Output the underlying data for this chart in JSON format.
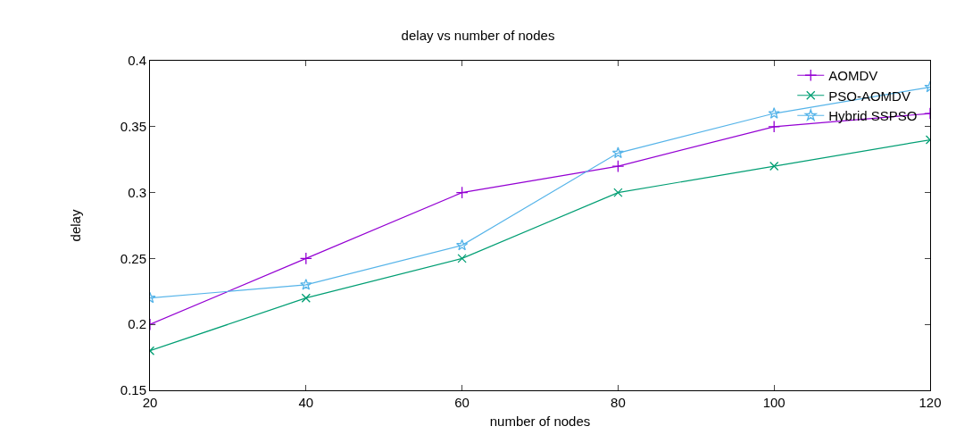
{
  "chart_data": {
    "type": "line",
    "title": "delay vs number of nodes",
    "xlabel": "number of nodes",
    "ylabel": "delay",
    "x": [
      20,
      40,
      60,
      80,
      100,
      120
    ],
    "series": [
      {
        "name": "AOMDV",
        "color": "#9400d3",
        "marker": "plus",
        "values": [
          0.2,
          0.25,
          0.3,
          0.32,
          0.35,
          0.36
        ]
      },
      {
        "name": "PSO-AOMDV",
        "color": "#009e73",
        "marker": "cross",
        "values": [
          0.18,
          0.22,
          0.25,
          0.3,
          0.32,
          0.34
        ]
      },
      {
        "name": "Hybrid SSPSO",
        "color": "#56b4e9",
        "marker": "star",
        "values": [
          0.22,
          0.23,
          0.26,
          0.33,
          0.36,
          0.38
        ]
      }
    ],
    "xlim": [
      20,
      120
    ],
    "xticks": [
      20,
      40,
      60,
      80,
      100,
      120
    ],
    "ylim": [
      0.15,
      0.4
    ],
    "yticks": [
      0.15,
      0.2,
      0.25,
      0.3,
      0.35,
      0.4
    ],
    "legend": "top right"
  }
}
